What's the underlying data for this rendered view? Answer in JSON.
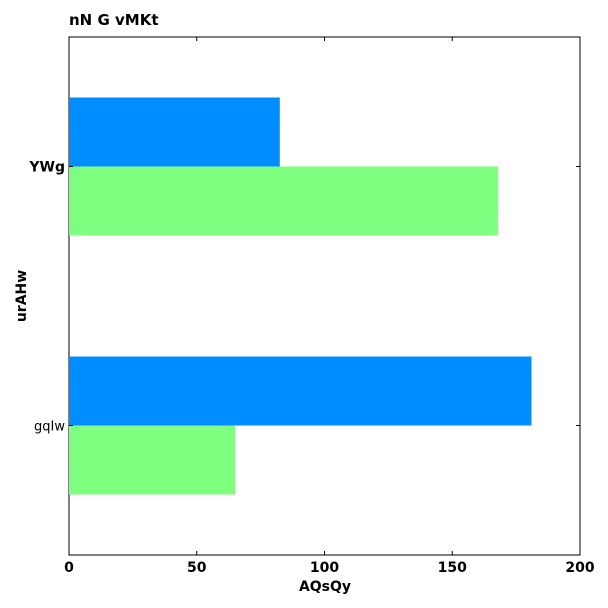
{
  "chart_data": {
    "type": "bar",
    "orientation": "horizontal",
    "title": "nN  G  vMKt",
    "xlabel": "AQsQy",
    "ylabel": "urAHw",
    "categories": [
      "YWg",
      "gqIw"
    ],
    "series": [
      {
        "values": [
          82.5,
          181
        ],
        "color": "#008dff"
      },
      {
        "values": [
          168,
          65
        ],
        "color": "#7fff7f"
      }
    ],
    "xlim": [
      0,
      200
    ],
    "xticks": [
      0,
      50,
      100,
      150,
      200
    ],
    "grid": false
  }
}
